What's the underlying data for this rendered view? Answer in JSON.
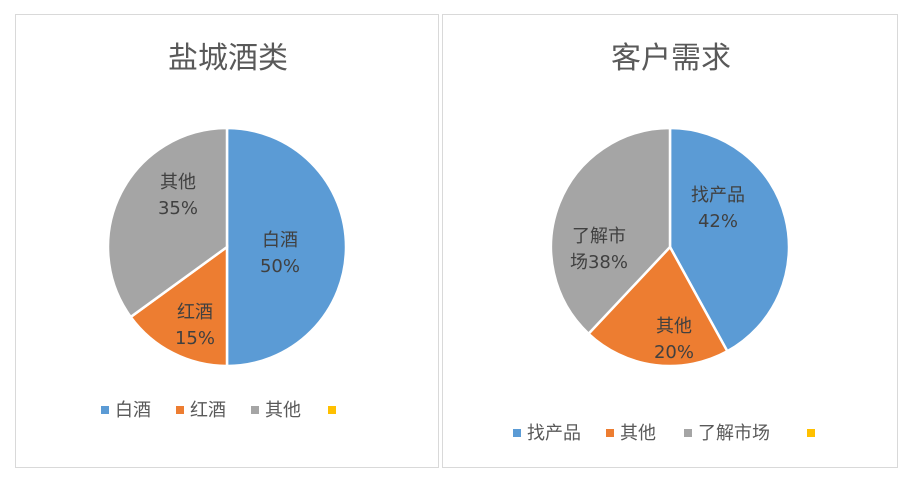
{
  "chart_data": [
    {
      "type": "pie",
      "title": "盐城酒类",
      "categories": [
        "白酒",
        "红酒",
        "其他",
        ""
      ],
      "values": [
        50,
        15,
        35,
        0
      ],
      "labels": [
        "50%",
        "15%",
        "35%"
      ],
      "colors": [
        "#5b9bd5",
        "#ed7d31",
        "#a5a5a5",
        "#ffc000"
      ],
      "legend_position": "bottom"
    },
    {
      "type": "pie",
      "title": "客户需求",
      "categories": [
        "找产品",
        "其他",
        "了解市场",
        ""
      ],
      "values": [
        42,
        20,
        38,
        0
      ],
      "labels": [
        "42%",
        "20%",
        "38%"
      ],
      "colors": [
        "#5b9bd5",
        "#ed7d31",
        "#a5a5a5",
        "#ffc000"
      ],
      "legend_position": "bottom"
    }
  ]
}
